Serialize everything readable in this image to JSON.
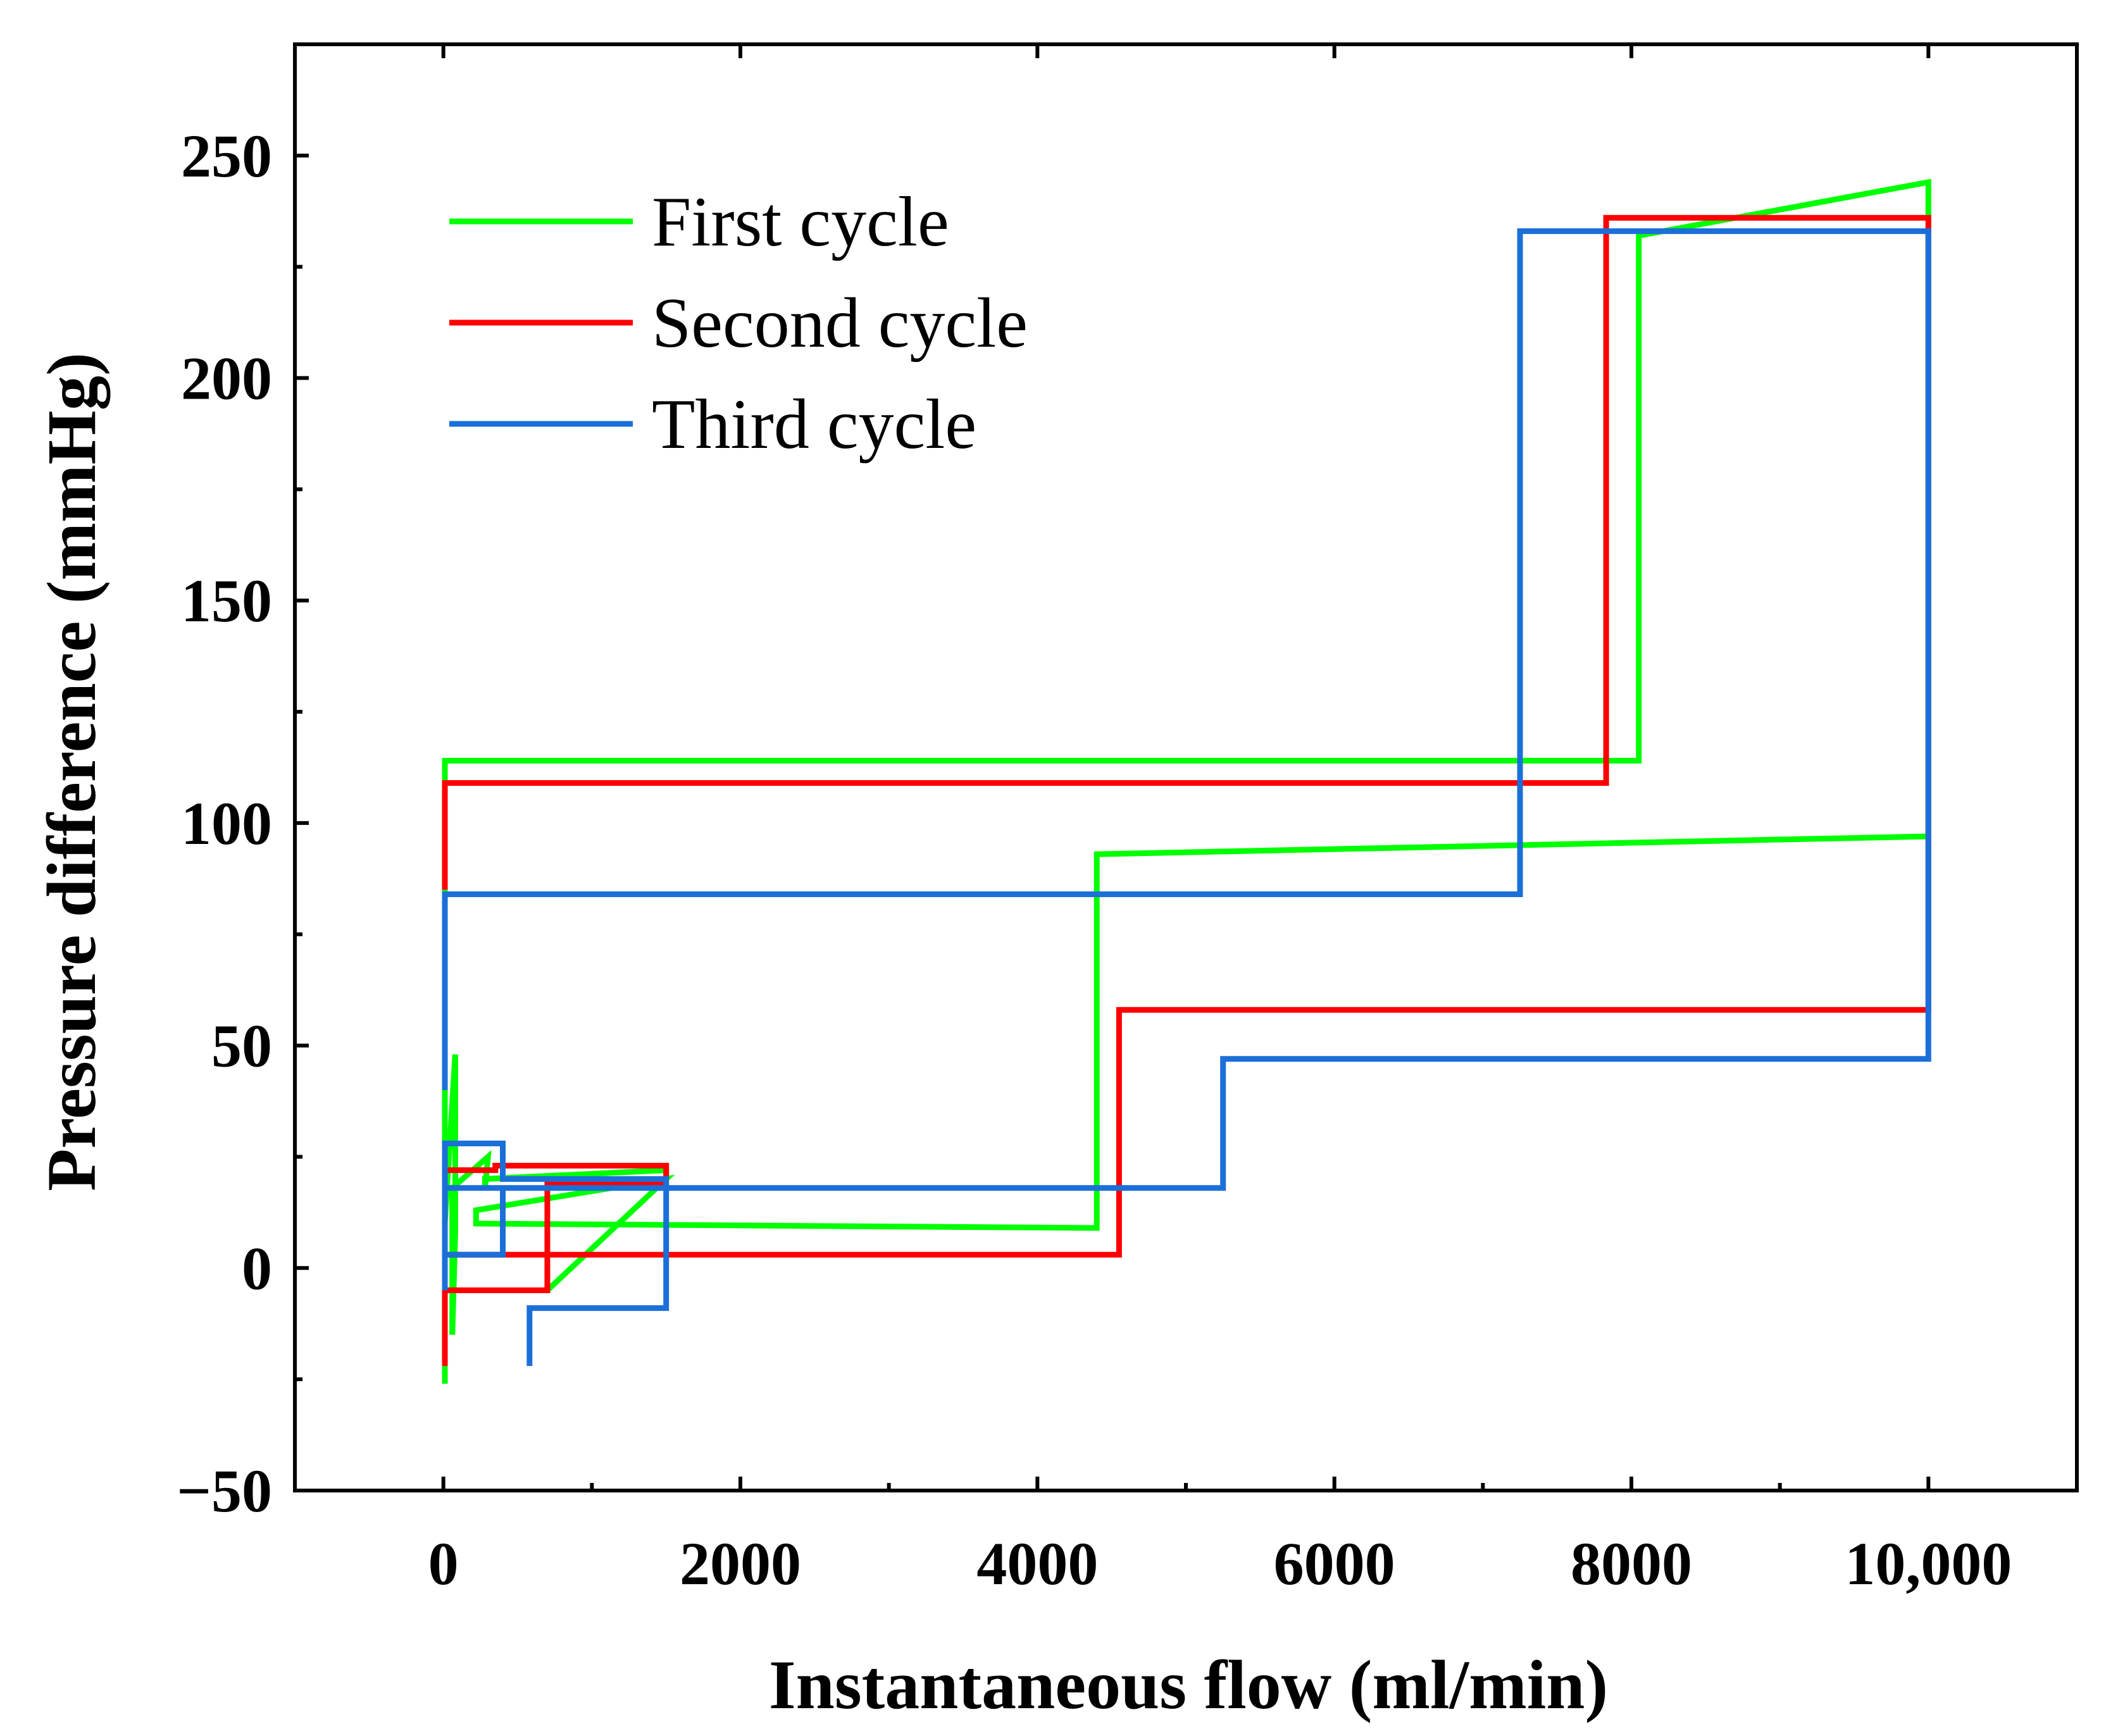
{
  "chart_data": {
    "type": "line",
    "title": "",
    "xlabel": "Instantaneous flow (ml/min)",
    "ylabel": "Pressure difference (mmHg)",
    "xlim": [
      -1000,
      11000
    ],
    "ylim": [
      -50,
      275
    ],
    "xticks": [
      0,
      2000,
      4000,
      6000,
      8000,
      10000
    ],
    "xtick_labels": [
      "0",
      "2000",
      "4000",
      "6000",
      "8000",
      "10,000"
    ],
    "yticks": [
      -50,
      0,
      50,
      100,
      150,
      200,
      250
    ],
    "ytick_labels": [
      "−50",
      "0",
      "50",
      "100",
      "150",
      "200",
      "250"
    ],
    "grid": false,
    "legend_position": "top-left",
    "series": [
      {
        "name": "First cycle",
        "color": "#00ff00",
        "x": [
          10,
          10,
          10,
          80,
          80,
          60,
          60,
          300,
          280,
          280,
          1500,
          1500,
          700,
          700,
          1500,
          1500,
          220,
          220,
          4400,
          4400,
          10000,
          10000,
          8050,
          8050,
          10,
          10,
          10
        ],
        "y": [
          -26,
          -10,
          10,
          48,
          8,
          -15,
          18,
          25,
          18,
          20,
          22,
          20,
          -5,
          -5,
          20,
          20,
          13,
          10,
          9,
          93,
          97,
          244,
          232,
          114,
          114,
          112,
          5
        ]
      },
      {
        "name": "Second cycle",
        "color": "#ff0000",
        "x": [
          10,
          10,
          10,
          350,
          350,
          1500,
          1500,
          700,
          700,
          10,
          10,
          4550,
          4550,
          10000,
          10000,
          7830,
          7830,
          10,
          10
        ],
        "y": [
          -22,
          -10,
          22,
          22,
          23,
          23,
          19,
          19,
          -5,
          -5,
          3,
          3,
          58,
          58,
          236,
          236,
          109,
          109,
          85
        ]
      },
      {
        "name": "Third cycle",
        "color": "#1b6fd8",
        "x": [
          10,
          10,
          10,
          400,
          400,
          1500,
          1500,
          580,
          580,
          580,
          1500,
          1500,
          400,
          400,
          10,
          10,
          5250,
          5250,
          10000,
          10000,
          7250,
          7250,
          10,
          10,
          10
        ],
        "y": [
          -5,
          3,
          28,
          28,
          20,
          20,
          -9,
          -9,
          -22,
          -9,
          -9,
          18,
          18,
          3,
          3,
          18,
          18,
          47,
          47,
          233,
          233,
          84,
          84,
          84,
          40
        ]
      }
    ]
  }
}
